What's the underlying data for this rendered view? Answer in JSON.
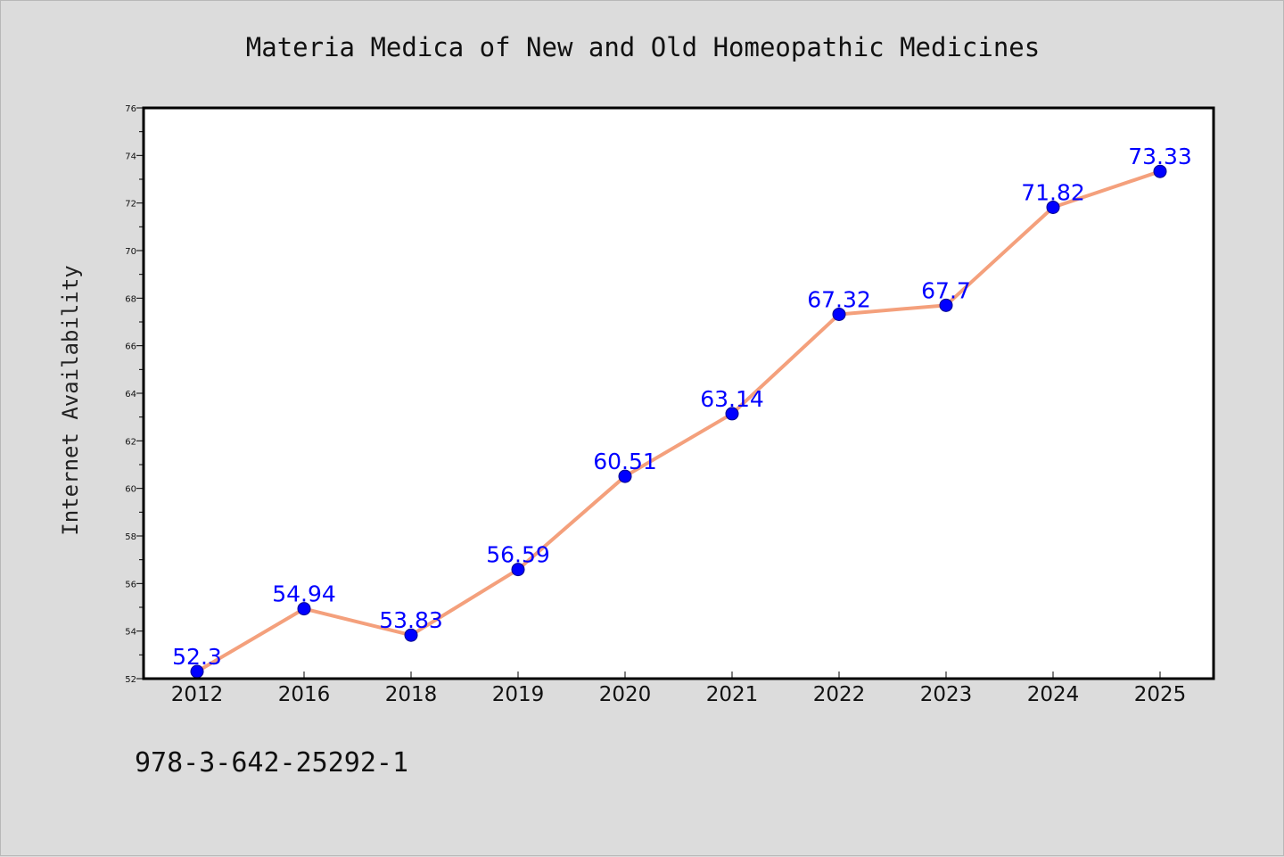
{
  "colors": {
    "background": "#dcdcdc",
    "plot_background": "#ffffff",
    "line": "#f4a07c",
    "marker": "#0000ff",
    "data_label": "#0000ff"
  },
  "footnote": "978-3-642-25292-1",
  "chart_data": {
    "type": "line",
    "title": "Materia Medica of New and Old Homeopathic Medicines",
    "xlabel": "",
    "ylabel": "Internet Availability",
    "categories": [
      "2012",
      "2016",
      "2018",
      "2019",
      "2020",
      "2021",
      "2022",
      "2023",
      "2024",
      "2025"
    ],
    "series": [
      {
        "values": [
          52.3,
          54.94,
          53.83,
          56.59,
          60.51,
          63.14,
          67.32,
          67.7,
          71.82,
          73.33
        ],
        "labels": [
          "52.3",
          "54.94",
          "53.83",
          "56.59",
          "60.51",
          "63.14",
          "67.32",
          "67.7",
          "71.82",
          "73.33"
        ]
      }
    ],
    "ylim": [
      52,
      76
    ],
    "yticks": [
      52,
      54,
      56,
      58,
      60,
      62,
      64,
      66,
      68,
      70,
      72,
      74,
      76
    ],
    "grid": false,
    "legend": "none"
  }
}
